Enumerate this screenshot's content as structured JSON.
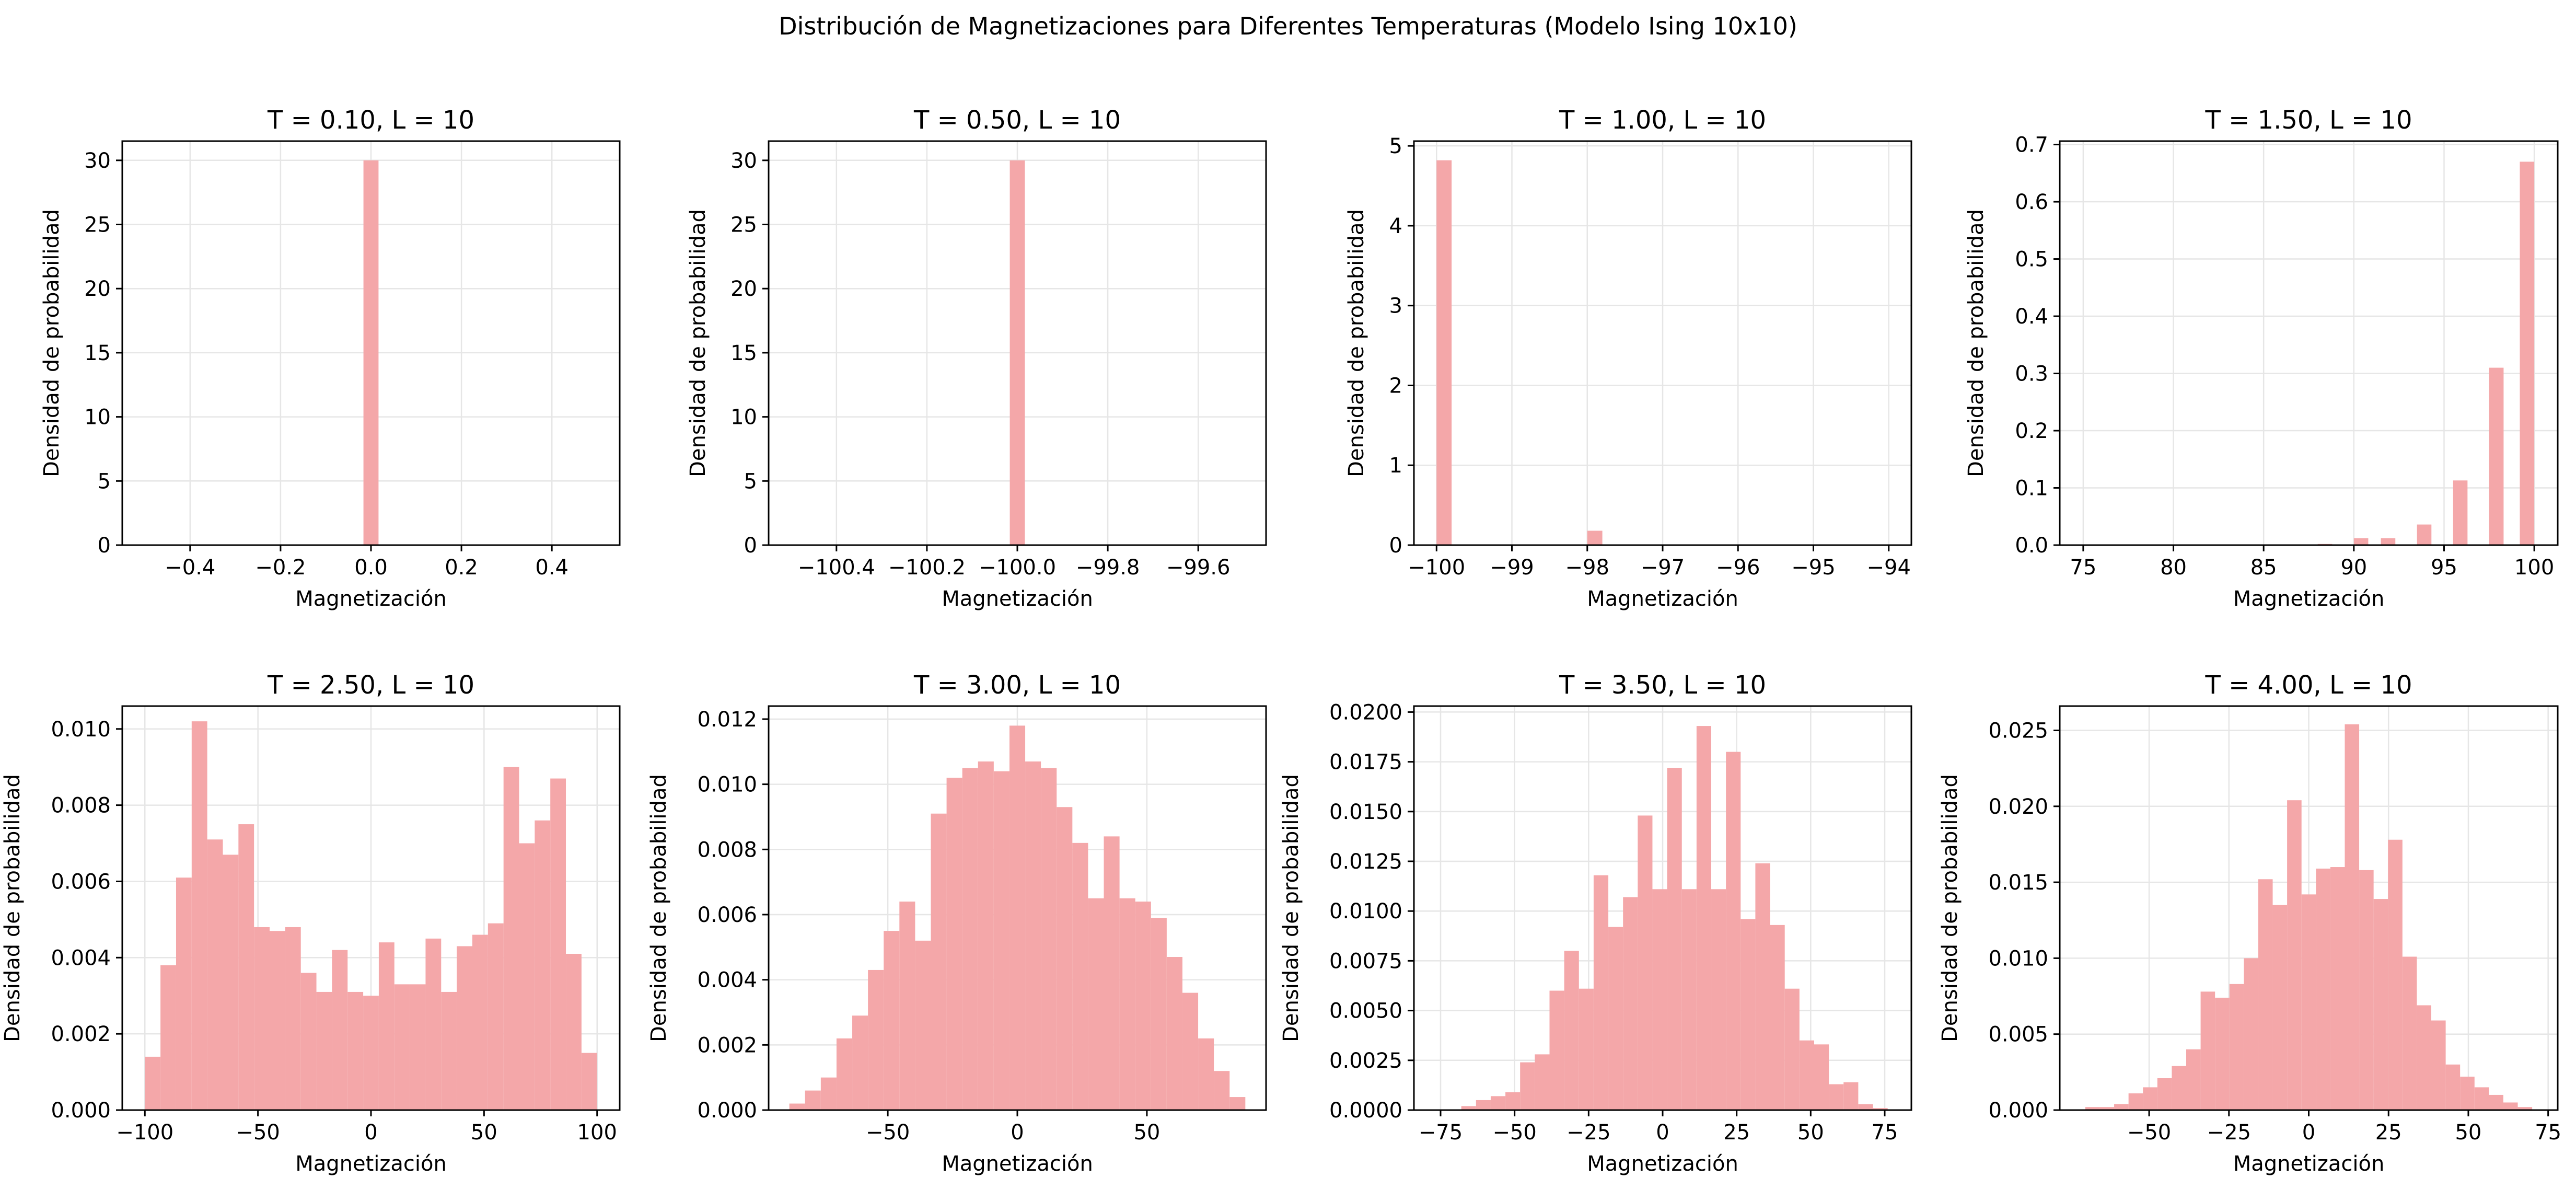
{
  "figure": {
    "title": "Distribución de Magnetizaciones para Diferentes Temperaturas (Modelo Ising 10x10)",
    "bar_color": "#f4a7a9",
    "grid_color": "#e6e6e6"
  },
  "chart_data": [
    {
      "type": "bar",
      "title": "T = 0.10, L = 10",
      "xlabel": "Magnetización",
      "ylabel": "Densidad de probabilidad",
      "xlim": [
        -0.55,
        0.55
      ],
      "ylim": [
        0,
        31.5
      ],
      "xticks": [
        -0.4,
        -0.2,
        0.0,
        0.2,
        0.4
      ],
      "xticklabels": [
        "−0.4",
        "−0.2",
        "0.0",
        "0.2",
        "0.4"
      ],
      "yticks": [
        0,
        5,
        10,
        15,
        20,
        25,
        30
      ],
      "yticklabels": [
        "0",
        "5",
        "10",
        "15",
        "20",
        "25",
        "30"
      ],
      "grid": true,
      "bin_width": 0.0333,
      "bins": [
        0.0
      ],
      "values": [
        30
      ]
    },
    {
      "type": "bar",
      "title": "T = 0.50, L = 10",
      "xlabel": "Magnetización",
      "ylabel": "Densidad de probabilidad",
      "xlim": [
        -100.55,
        -99.45
      ],
      "ylim": [
        0,
        31.5
      ],
      "xticks": [
        -100.4,
        -100.2,
        -100.0,
        -99.8,
        -99.6
      ],
      "xticklabels": [
        "−100.4",
        "−100.2",
        "−100.0",
        "−99.8",
        "−99.6"
      ],
      "yticks": [
        0,
        5,
        10,
        15,
        20,
        25,
        30
      ],
      "yticklabels": [
        "0",
        "5",
        "10",
        "15",
        "20",
        "25",
        "30"
      ],
      "grid": true,
      "bin_width": 0.0333,
      "bins": [
        -100.0
      ],
      "values": [
        30
      ]
    },
    {
      "type": "bar",
      "title": "T = 1.00, L = 10",
      "xlabel": "Magnetización",
      "ylabel": "Densidad de probabilidad",
      "xlim": [
        -100.3,
        -93.7
      ],
      "ylim": [
        0,
        5.06
      ],
      "xticks": [
        -100,
        -99,
        -98,
        -97,
        -96,
        -95,
        -94
      ],
      "xticklabels": [
        "−100",
        "−99",
        "−98",
        "−97",
        "−96",
        "−95",
        "−94"
      ],
      "yticks": [
        0,
        1,
        2,
        3,
        4,
        5
      ],
      "yticklabels": [
        "0",
        "1",
        "2",
        "3",
        "4",
        "5"
      ],
      "grid": true,
      "bin_width": 0.2,
      "bins": [
        -99.9,
        -97.9
      ],
      "values": [
        4.82,
        0.18
      ]
    },
    {
      "type": "bar",
      "title": "T = 1.50, L = 10",
      "xlabel": "Magnetización",
      "ylabel": "Densidad de probabilidad",
      "xlim": [
        -26.3,
        101.3
      ],
      "ylim": [
        0,
        0.706
      ],
      "xticks": [
        75,
        80,
        85,
        90,
        95,
        100
      ],
      "xticklabels": [
        "75",
        "80",
        "85",
        "90",
        "95",
        "100"
      ],
      "yticks": [
        0.0,
        0.1,
        0.2,
        0.3,
        0.4,
        0.5,
        0.6,
        0.7
      ],
      "yticklabels": [
        "0.0",
        "0.1",
        "0.2",
        "0.3",
        "0.4",
        "0.5",
        "0.6",
        "0.7"
      ],
      "grid": true,
      "view_xlim": [
        73.7,
        101.3
      ],
      "bin_width": 0.8,
      "bins": [
        76.4,
        80.4,
        84.4,
        86.4,
        88.4,
        90.4,
        92.4,
        94.4,
        96.4,
        98.4,
        100.4
      ],
      "values": [
        0.0003,
        0.0003,
        0.0004,
        0.0008,
        0.002,
        0.012,
        0.036,
        0.113,
        0.31,
        0.67,
        0
      ],
      "note_bars": [
        {
          "x": 91.9,
          "v": 0.012
        },
        {
          "x": 93.9,
          "v": 0.036
        },
        {
          "x": 95.9,
          "v": 0.113
        },
        {
          "x": 97.9,
          "v": 0.31
        },
        {
          "x": 99.6,
          "v": 0.67
        }
      ]
    },
    {
      "type": "bar",
      "title": "T = 2.50, L = 10",
      "xlabel": "Magnetización",
      "ylabel": "Densidad de probabilidad",
      "xlim": [
        -110,
        110
      ],
      "ylim": [
        0,
        0.0106
      ],
      "xticks": [
        -100,
        -50,
        0,
        50,
        100
      ],
      "xticklabels": [
        "−100",
        "−50",
        "0",
        "50",
        "100"
      ],
      "yticks": [
        0.0,
        0.002,
        0.004,
        0.006,
        0.008,
        0.01
      ],
      "yticklabels": [
        "0.000",
        "0.002",
        "0.004",
        "0.006",
        "0.008",
        "0.010"
      ],
      "grid": true,
      "range": [
        -100,
        100
      ],
      "values": [
        0.0014,
        0.0038,
        0.0061,
        0.0102,
        0.0071,
        0.0067,
        0.0075,
        0.0048,
        0.0047,
        0.0048,
        0.0036,
        0.0031,
        0.0042,
        0.0031,
        0.003,
        0.0044,
        0.0033,
        0.0033,
        0.0045,
        0.0031,
        0.0043,
        0.0046,
        0.0049,
        0.009,
        0.007,
        0.0076,
        0.0087,
        0.0041,
        0.0015
      ]
    },
    {
      "type": "bar",
      "title": "T = 3.00, L = 10",
      "xlabel": "Magnetización",
      "ylabel": "Densidad de probabilidad",
      "xlim": [
        -96,
        96
      ],
      "ylim": [
        0,
        0.0124
      ],
      "xticks": [
        -50,
        0,
        50
      ],
      "xticklabels": [
        "−50",
        "0",
        "50"
      ],
      "yticks": [
        0.0,
        0.002,
        0.004,
        0.006,
        0.008,
        0.01,
        0.012
      ],
      "yticklabels": [
        "0.000",
        "0.002",
        "0.004",
        "0.006",
        "0.008",
        "0.010",
        "0.012"
      ],
      "grid": true,
      "range": [
        -88,
        88
      ],
      "values": [
        0.0002,
        0.0006,
        0.001,
        0.0022,
        0.0029,
        0.0043,
        0.0055,
        0.0064,
        0.0052,
        0.0091,
        0.0102,
        0.0105,
        0.0107,
        0.0104,
        0.0118,
        0.0107,
        0.0105,
        0.0093,
        0.0082,
        0.0065,
        0.0084,
        0.0065,
        0.0064,
        0.0059,
        0.0047,
        0.0036,
        0.0022,
        0.0012,
        0.0004
      ]
    },
    {
      "type": "bar",
      "title": "T = 3.50, L = 10",
      "xlabel": "Magnetización",
      "ylabel": "Densidad de probabilidad",
      "xlim": [
        -84,
        84
      ],
      "ylim": [
        0,
        0.0203
      ],
      "xticks": [
        -75,
        -50,
        -25,
        0,
        25,
        50,
        75
      ],
      "xticklabels": [
        "−75",
        "−50",
        "−25",
        "0",
        "25",
        "50",
        "75"
      ],
      "yticks": [
        0.0,
        0.0025,
        0.005,
        0.0075,
        0.01,
        0.0125,
        0.015,
        0.0175,
        0.02
      ],
      "yticklabels": [
        "0.0000",
        "0.0025",
        "0.0050",
        "0.0075",
        "0.0100",
        "0.0125",
        "0.0150",
        "0.0175",
        "0.0200"
      ],
      "grid": true,
      "range": [
        -68,
        76
      ],
      "values": [
        0.0002,
        0.0005,
        0.0007,
        0.0009,
        0.0024,
        0.0028,
        0.006,
        0.008,
        0.0061,
        0.0118,
        0.0092,
        0.0107,
        0.0148,
        0.0111,
        0.0172,
        0.0111,
        0.0193,
        0.0111,
        0.018,
        0.0096,
        0.0124,
        0.0093,
        0.0061,
        0.0035,
        0.0033,
        0.0013,
        0.0014,
        0.0003,
        0.0001
      ]
    },
    {
      "type": "bar",
      "title": "T = 4.00, L = 10",
      "xlabel": "Magnetización",
      "ylabel": "Densidad de probabilidad",
      "xlim": [
        -78,
        78
      ],
      "ylim": [
        0,
        0.0266
      ],
      "xticks": [
        -50,
        -25,
        0,
        25,
        50,
        75
      ],
      "xticklabels": [
        "−50",
        "−25",
        "0",
        "25",
        "50",
        "75"
      ],
      "yticks": [
        0.0,
        0.005,
        0.01,
        0.015,
        0.02,
        0.025
      ],
      "yticklabels": [
        "0.000",
        "0.005",
        "0.010",
        "0.015",
        "0.020",
        "0.025"
      ],
      "grid": true,
      "range": [
        -70,
        70
      ],
      "values": [
        0.0002,
        0.0002,
        0.0004,
        0.0011,
        0.0015,
        0.0021,
        0.0029,
        0.004,
        0.0078,
        0.0074,
        0.0083,
        0.01,
        0.0152,
        0.0135,
        0.0204,
        0.0142,
        0.0159,
        0.016,
        0.0254,
        0.0158,
        0.0139,
        0.0178,
        0.0101,
        0.0069,
        0.0059,
        0.003,
        0.0022,
        0.0015,
        0.001,
        0.0005,
        0.0002
      ]
    }
  ]
}
